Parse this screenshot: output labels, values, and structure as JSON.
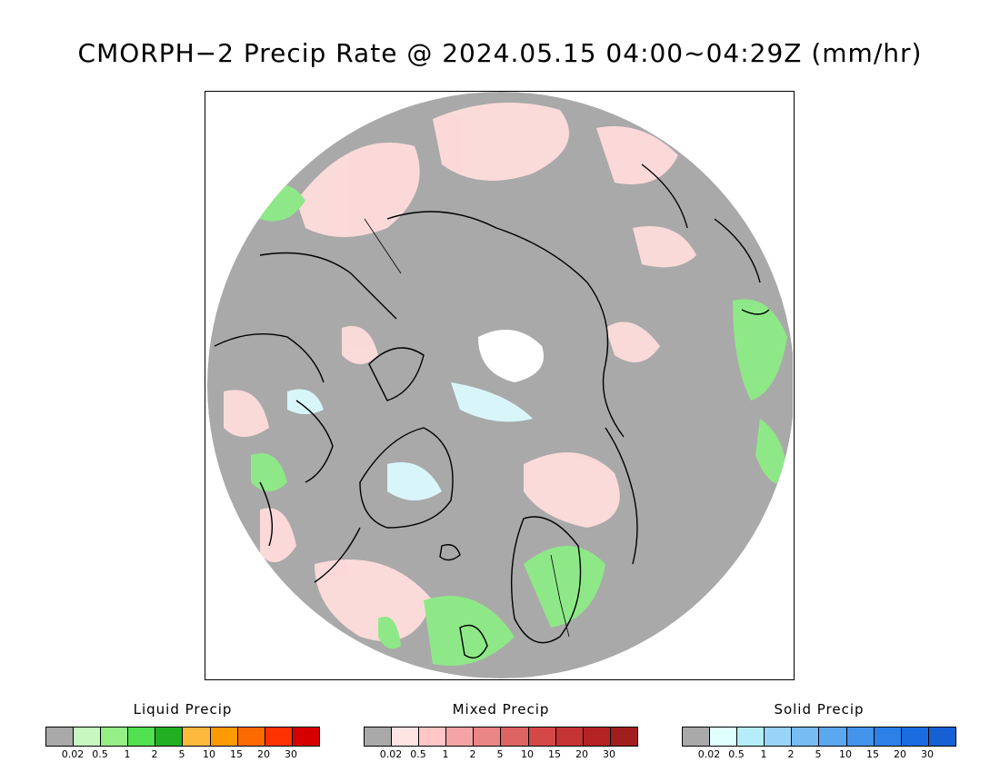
{
  "title": "CMORPH−2 Precip Rate @ 2024.05.15 04:00~04:29Z (mm/hr)",
  "legends": [
    {
      "title": "Liquid Precip",
      "colors": [
        "#a9a9a9",
        "#c8f8c0",
        "#96ee86",
        "#50e050",
        "#22b022",
        "#fdb93c",
        "#fd9a00",
        "#fd6a00",
        "#fd3200",
        "#d60000"
      ],
      "ticks": [
        "0.02",
        "0.5",
        "1",
        "2",
        "5",
        "10",
        "15",
        "20",
        "30"
      ]
    },
    {
      "title": "Mixed Precip",
      "colors": [
        "#a9a9a9",
        "#ffe4e4",
        "#ffc6c6",
        "#f4a4a4",
        "#ea8686",
        "#de6464",
        "#d44848",
        "#c43434",
        "#b42424",
        "#a01e1e"
      ],
      "ticks": [
        "0.02",
        "0.5",
        "1",
        "2",
        "5",
        "10",
        "15",
        "20",
        "30"
      ]
    },
    {
      "title": "Solid Precip",
      "colors": [
        "#a9a9a9",
        "#e0ffff",
        "#b4eefa",
        "#98d4f8",
        "#78bcf4",
        "#5ca8f0",
        "#4494ec",
        "#2c80e8",
        "#1a6ce0",
        "#1660d4"
      ],
      "ticks": [
        "0.02",
        "0.5",
        "1",
        "2",
        "5",
        "10",
        "15",
        "20",
        "30"
      ]
    }
  ]
}
